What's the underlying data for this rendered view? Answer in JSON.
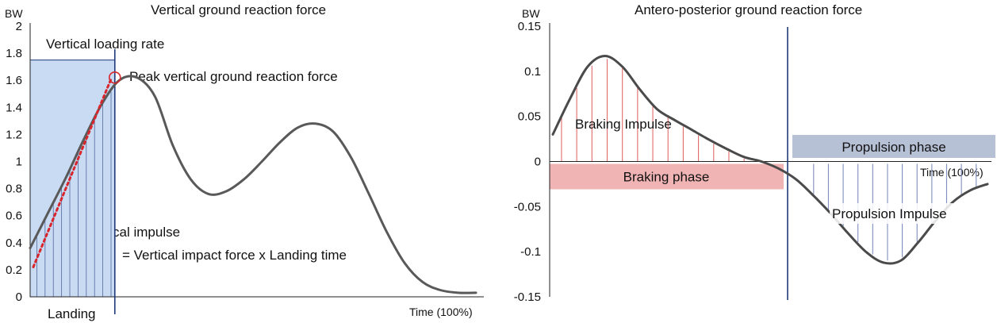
{
  "chart_data": [
    {
      "type": "line",
      "title": "Vertical ground reaction force",
      "ylabel": "BW",
      "xlabel": "Time (100%)",
      "ylim": [
        0,
        2
      ],
      "yticks": [
        "2",
        "1.8",
        "1.6",
        "1.4",
        "1.2",
        "1",
        "0.8",
        "0.6",
        "0.4",
        "0.2",
        "0"
      ],
      "series": [
        {
          "x": [
            0,
            4,
            8,
            12,
            16,
            20,
            24,
            28,
            32,
            36,
            40,
            44,
            48,
            52,
            56,
            60,
            64,
            68,
            72,
            76,
            80,
            84,
            88,
            92,
            96,
            100
          ],
          "values": [
            0.36,
            0.62,
            0.88,
            1.16,
            1.42,
            1.6,
            1.62,
            1.48,
            1.12,
            0.87,
            0.76,
            0.78,
            0.87,
            1.0,
            1.14,
            1.25,
            1.28,
            1.22,
            1.03,
            0.76,
            0.48,
            0.25,
            0.11,
            0.05,
            0.03,
            0.03
          ]
        }
      ],
      "annotations": {
        "loading_rate": "Vertical loading rate",
        "peak": "Peak vertical ground reaction force",
        "impulse": "Vertical impulse",
        "formula": "= Vertical impact force x Landing time",
        "landing": "Landing"
      },
      "loading_line": {
        "x": [
          0,
          19
        ],
        "values": [
          0.22,
          1.62
        ]
      },
      "landing_box_top": 1.75,
      "colors": {
        "curve": "#595959",
        "loading_box": "#c9daf3",
        "marker": "#d9262c",
        "phase_line": "#1f3a7a",
        "hatch": "#1f3a7a"
      }
    },
    {
      "type": "line",
      "title": "Antero-posterior ground reaction force",
      "ylabel": "BW",
      "xlabel": "Time (100%)",
      "ylim": [
        -0.15,
        0.15
      ],
      "yticks": [
        "0.15",
        "0.1",
        "0.05",
        "0",
        "-0.05",
        "-0.1",
        "-0.15"
      ],
      "series": [
        {
          "x": [
            0,
            4,
            8,
            12,
            16,
            20,
            24,
            28,
            32,
            36,
            40,
            44,
            48,
            52,
            56,
            60,
            64,
            68,
            72,
            76,
            80,
            84,
            88,
            92,
            96,
            100
          ],
          "values": [
            0.03,
            0.07,
            0.105,
            0.117,
            0.105,
            0.08,
            0.058,
            0.046,
            0.035,
            0.024,
            0.014,
            0.005,
            0.0,
            -0.008,
            -0.02,
            -0.038,
            -0.058,
            -0.08,
            -0.1,
            -0.112,
            -0.11,
            -0.09,
            -0.066,
            -0.045,
            -0.032,
            -0.025
          ]
        }
      ],
      "annotations": {
        "braking_impulse": "Braking Impulse",
        "braking_phase": "Braking phase",
        "propulsion_phase": "Propulsion phase",
        "propulsion_impulse": "Propulsion Impulse"
      },
      "colors": {
        "curve": "#4a4a4a",
        "braking": "#f0b4b4",
        "braking_hatch": "#e06a6a",
        "propulsion": "#b7c1d6",
        "propulsion_hatch": "#7d8fbf",
        "phase_line": "#1f3a7a"
      }
    }
  ]
}
